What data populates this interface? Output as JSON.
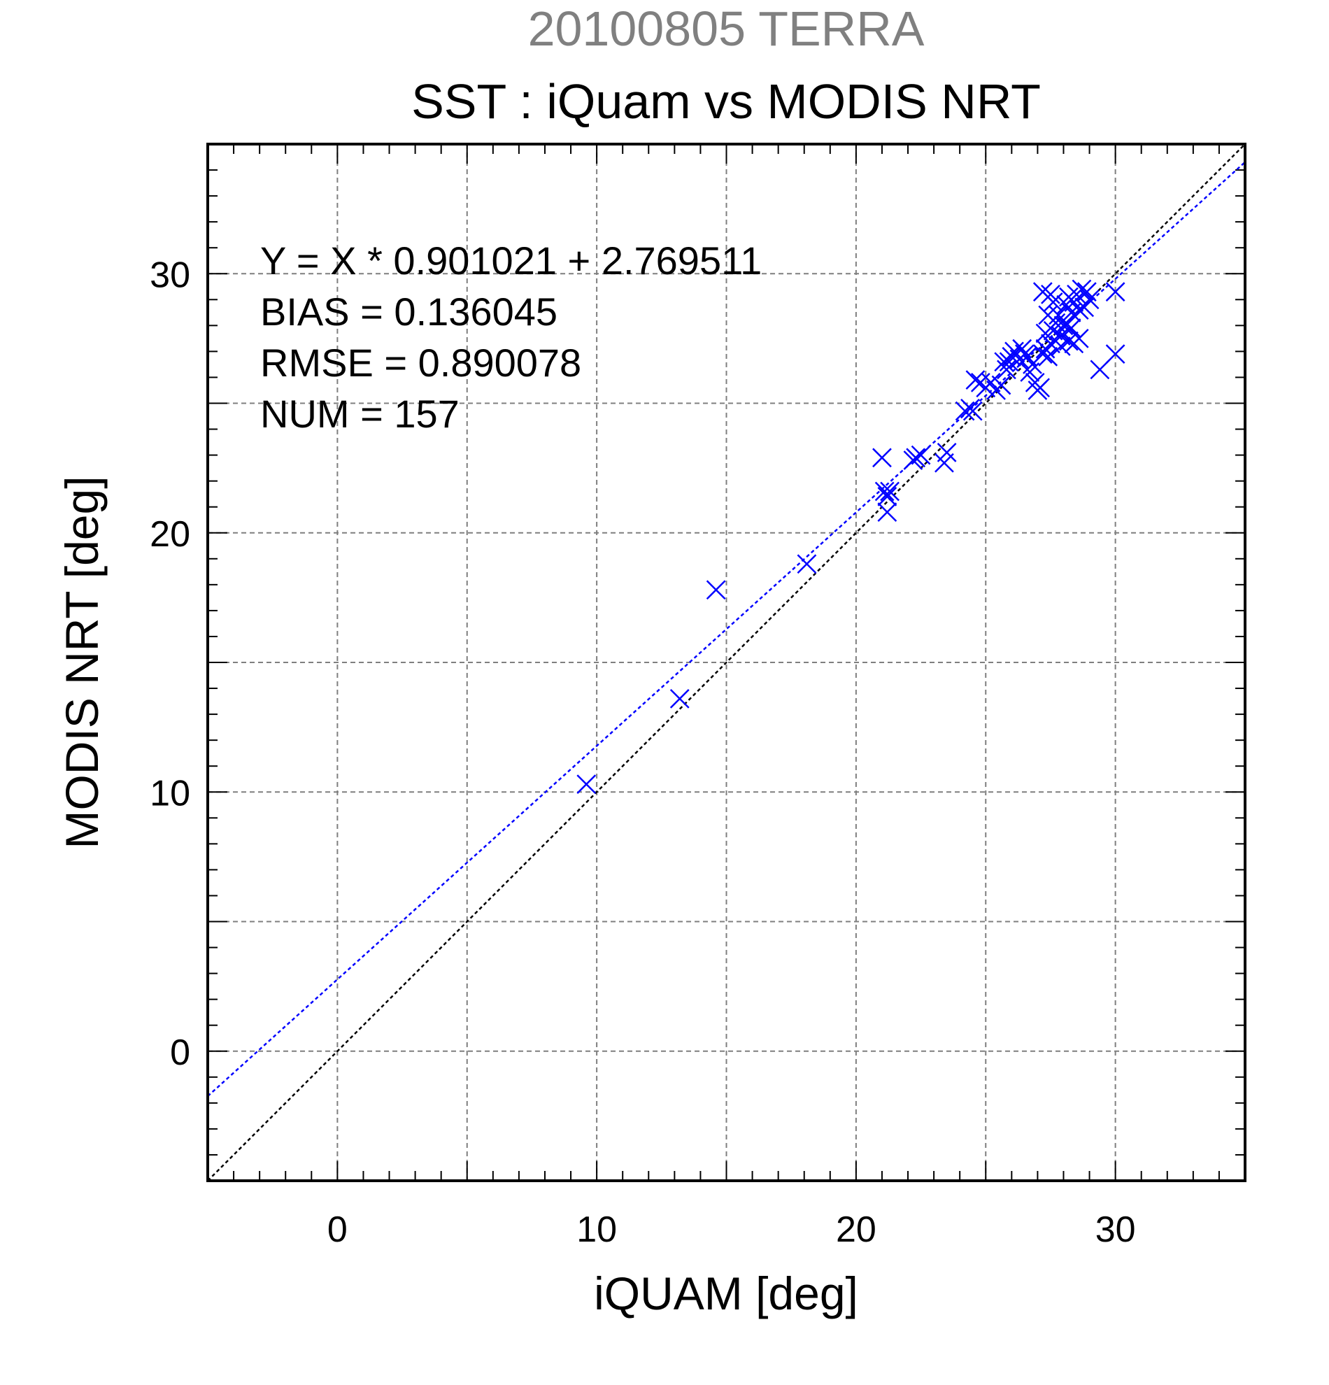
{
  "chart_data": {
    "type": "scatter",
    "supertitle": "20100805 TERRA",
    "title": "SST : iQuam vs MODIS NRT",
    "xlabel": "iQUAM [deg]",
    "ylabel": "MODIS NRT [deg]",
    "xlim": [
      -5,
      35
    ],
    "ylim": [
      -5,
      35
    ],
    "major_ticks": [
      0,
      10,
      20,
      30
    ],
    "tick_labels": [
      "0",
      "10",
      "20",
      "30"
    ],
    "grid": true,
    "grid_step": 5,
    "minor_step": 1,
    "annotations": [
      "Y = X * 0.901021 + 2.769511",
      "BIAS = 0.136045",
      "RMSE = 0.890078",
      "NUM = 157"
    ],
    "lines": [
      {
        "kind": "identity",
        "slope": 1,
        "intercept": 0,
        "color": "#000000"
      },
      {
        "kind": "fit",
        "slope": 0.901021,
        "intercept": 2.769511,
        "color": "#0000ff"
      }
    ],
    "marker_color": "#0000ff",
    "series": [
      {
        "marker": "x",
        "points": [
          [
            9.6,
            10.3
          ],
          [
            13.2,
            13.6
          ],
          [
            14.6,
            17.8
          ],
          [
            18.1,
            18.8
          ],
          [
            21.0,
            22.9
          ],
          [
            21.1,
            21.6
          ],
          [
            21.2,
            21.4
          ],
          [
            21.3,
            21.6
          ],
          [
            21.2,
            20.8
          ],
          [
            22.2,
            22.8
          ],
          [
            22.3,
            22.9
          ],
          [
            22.5,
            23.0
          ],
          [
            23.4,
            22.7
          ],
          [
            23.5,
            23.1
          ],
          [
            24.2,
            24.7
          ],
          [
            24.4,
            24.8
          ],
          [
            24.5,
            24.7
          ],
          [
            24.6,
            25.9
          ],
          [
            24.8,
            25.8
          ],
          [
            25.0,
            25.6
          ],
          [
            25.2,
            25.8
          ],
          [
            25.4,
            25.5
          ],
          [
            25.6,
            25.7
          ],
          [
            25.8,
            26.3
          ],
          [
            25.7,
            26.6
          ],
          [
            26.0,
            26.8
          ],
          [
            26.1,
            27.0
          ],
          [
            26.3,
            26.7
          ],
          [
            26.4,
            27.1
          ],
          [
            26.6,
            26.8
          ],
          [
            26.8,
            26.5
          ],
          [
            26.9,
            25.8
          ],
          [
            27.0,
            25.5
          ],
          [
            27.1,
            25.6
          ],
          [
            27.2,
            26.9
          ],
          [
            27.3,
            27.1
          ],
          [
            27.4,
            26.8
          ],
          [
            27.5,
            27.3
          ],
          [
            27.6,
            27.8
          ],
          [
            27.7,
            28.1
          ],
          [
            27.8,
            28.4
          ],
          [
            27.9,
            27.6
          ],
          [
            28.0,
            28.0
          ],
          [
            28.1,
            28.8
          ],
          [
            28.2,
            29.1
          ],
          [
            28.3,
            28.5
          ],
          [
            28.4,
            28.9
          ],
          [
            28.5,
            29.2
          ],
          [
            28.6,
            28.6
          ],
          [
            28.7,
            29.4
          ],
          [
            28.8,
            28.7
          ],
          [
            28.9,
            29.3
          ],
          [
            29.0,
            29.0
          ],
          [
            27.2,
            29.3
          ],
          [
            27.5,
            29.2
          ],
          [
            27.4,
            28.4
          ],
          [
            27.6,
            28.9
          ],
          [
            27.9,
            27.2
          ],
          [
            28.2,
            27.4
          ],
          [
            28.4,
            27.3
          ],
          [
            28.6,
            27.5
          ],
          [
            28.1,
            28.0
          ],
          [
            28.3,
            27.9
          ],
          [
            27.3,
            27.7
          ],
          [
            29.4,
            26.3
          ],
          [
            30.0,
            26.9
          ],
          [
            30.0,
            29.3
          ],
          [
            26.7,
            26.2
          ],
          [
            26.5,
            26.9
          ],
          [
            25.9,
            26.6
          ]
        ]
      }
    ]
  }
}
